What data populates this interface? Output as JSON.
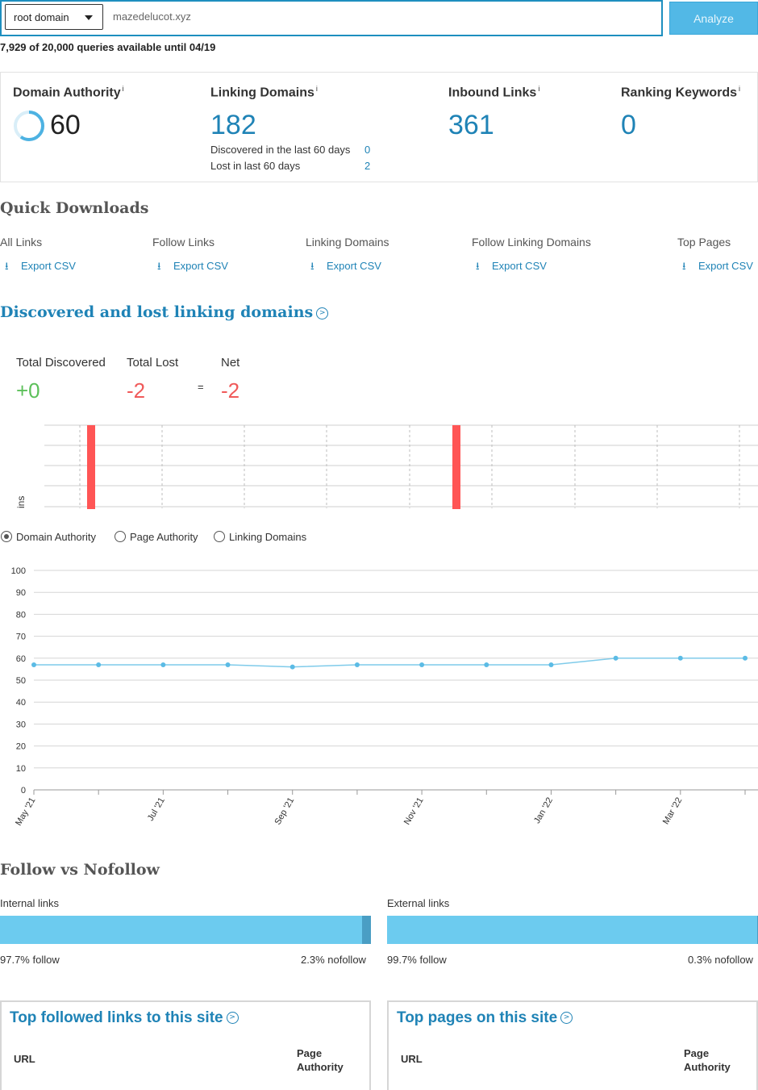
{
  "search": {
    "scope_value": "root domain",
    "query_value": "mazedelucot.xyz",
    "analyze_label": "Analyze",
    "quota_text": "7,929 of 20,000 queries available until 04/19"
  },
  "metrics": {
    "domain_authority": {
      "title": "Domain Authority",
      "info": "i",
      "value": "60",
      "gauge_fraction": 0.6
    },
    "linking_domains": {
      "title": "Linking Domains",
      "info": "i",
      "value": "182",
      "discovered_label": "Discovered in the last 60 days",
      "discovered_value": "0",
      "lost_label": "Lost in last 60 days",
      "lost_value": "2"
    },
    "inbound_links": {
      "title": "Inbound Links",
      "info": "i",
      "value": "361"
    },
    "ranking_keywords": {
      "title": "Ranking Keywords",
      "info": "i",
      "value": "0"
    }
  },
  "quick_downloads": {
    "title": "Quick Downloads",
    "items": [
      {
        "label": "All Links",
        "link": "Export CSV"
      },
      {
        "label": "Follow Links",
        "link": "Export CSV"
      },
      {
        "label": "Linking Domains",
        "link": "Export CSV"
      },
      {
        "label": "Follow Linking Domains",
        "link": "Export CSV"
      },
      {
        "label": "Top Pages",
        "link": "Export CSV"
      }
    ]
  },
  "discovered_lost": {
    "title": "Discovered and lost linking domains",
    "info_glyph": ">",
    "total_discovered_label": "Total Discovered",
    "total_discovered_value": "+0",
    "total_lost_label": "Total Lost",
    "total_lost_value": "-2",
    "equals": "=",
    "net_label": "Net",
    "net_value": "-2",
    "axis_partial_label": "ins"
  },
  "metric_selector": {
    "options": [
      "Domain Authority",
      "Page Authority",
      "Linking Domains"
    ],
    "selected": "Domain Authority"
  },
  "chart_data": [
    {
      "type": "bar",
      "title": "",
      "ylabel": "ins",
      "series": [
        {
          "name": "lost",
          "values": [
            -1,
            -1
          ]
        }
      ],
      "bar_positions_note": "two lost events",
      "colors": {
        "lost": "#ff5555"
      }
    },
    {
      "type": "line",
      "title": "",
      "ylim": [
        0,
        100
      ],
      "yticks": [
        0,
        10,
        20,
        30,
        40,
        50,
        60,
        70,
        80,
        90,
        100
      ],
      "xtick_labels": [
        "May '21",
        "Jul '21",
        "Sep '21",
        "Nov '21",
        "Jan '22",
        "Mar '22"
      ],
      "x": [
        "May '21",
        "Jun '21",
        "Jul '21",
        "Aug '21",
        "Sep '21",
        "Oct '21",
        "Nov '21",
        "Dec '21",
        "Jan '22",
        "Feb '22",
        "Mar '22",
        "Apr '22"
      ],
      "series": [
        {
          "name": "Domain Authority",
          "values": [
            57,
            57,
            57,
            57,
            56,
            57,
            57,
            57,
            57,
            60,
            60,
            60
          ]
        }
      ],
      "grid": true,
      "colors": {
        "line": "#7fcbea",
        "point": "#5bbbe5"
      }
    }
  ],
  "follow_nofollow": {
    "title": "Follow vs Nofollow",
    "internal": {
      "label": "Internal links",
      "follow_fraction": 0.977,
      "follow_text": "97.7% follow",
      "nofollow_text": "2.3% nofollow"
    },
    "external": {
      "label": "External links",
      "follow_fraction": 0.997,
      "follow_text": "99.7% follow",
      "nofollow_text": "0.3% nofollow"
    },
    "colors": {
      "follow": "#6ccbef",
      "nofollow": "#4a9ec4"
    }
  },
  "panels": {
    "top_followed": {
      "title": "Top followed links to this site",
      "col_url": "URL",
      "col_pa_line1": "Page",
      "col_pa_line2": "Authority"
    },
    "top_pages": {
      "title": "Top pages on this site",
      "col_url": "URL",
      "col_pa_line1": "Page",
      "col_pa_line2": "Authority"
    }
  }
}
